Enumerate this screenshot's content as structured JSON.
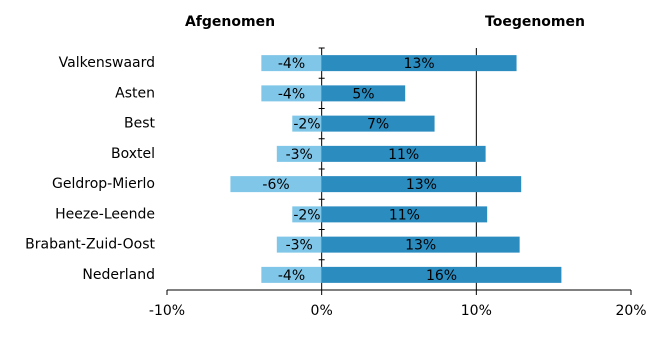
{
  "chart_data": {
    "type": "bar",
    "orientation": "horizontal",
    "categories": [
      "Valkenswaard",
      "Asten",
      "Best",
      "Boxtel",
      "Geldrop-Mierlo",
      "Heeze-Leende",
      "Brabant-Zuid-Oost",
      "Nederland"
    ],
    "series": [
      {
        "name": "Afgenomen",
        "color": "#80c6e8",
        "values": [
          -3.9,
          -3.9,
          -1.9,
          -2.9,
          -5.9,
          -1.9,
          -2.9,
          -3.9
        ],
        "value_labels": [
          "-4%",
          "-4%",
          "-2%",
          "-3%",
          "-6%",
          "-2%",
          "-3%",
          "-4%"
        ]
      },
      {
        "name": "Toegenomen",
        "color": "#2b8cc0",
        "values": [
          12.6,
          5.4,
          7.3,
          10.6,
          12.9,
          10.7,
          12.8,
          15.5
        ],
        "value_labels": [
          "13%",
          "5%",
          "7%",
          "11%",
          "13%",
          "11%",
          "13%",
          "16%"
        ]
      }
    ],
    "xlim": [
      -10,
      20
    ],
    "xticks": [
      {
        "value": -10,
        "label": "-10%"
      },
      {
        "value": 0,
        "label": "0%"
      },
      {
        "value": 10,
        "label": "10%"
      },
      {
        "value": 20,
        "label": "20%"
      }
    ],
    "grid": true
  }
}
